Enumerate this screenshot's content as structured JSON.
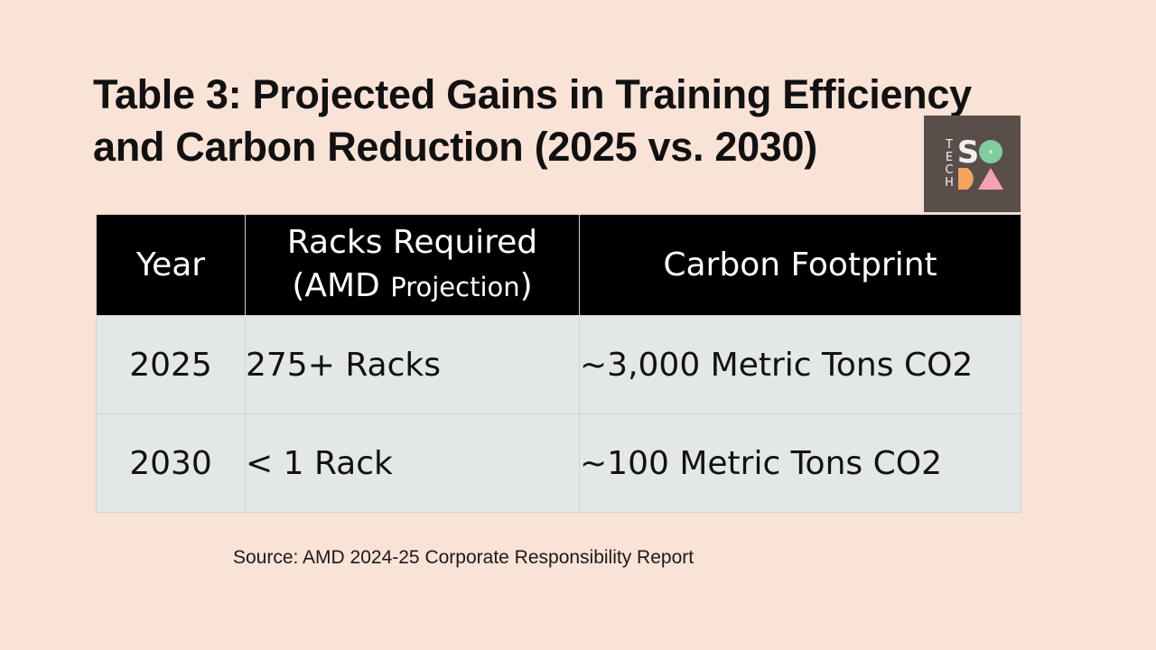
{
  "title": {
    "line1": "Table 3: Projected Gains in Training Efficiency",
    "line2": "and Carbon Reduction (2025 vs. 2030)"
  },
  "logo": {
    "letters_vertical": [
      "T",
      "E",
      "C",
      "H"
    ],
    "letters_main": [
      "S",
      "O",
      "D",
      "A"
    ],
    "colors": {
      "background": "#5a4e4a",
      "s": "#f2f0eb",
      "o": "#7fcf9e",
      "d": "#f4a45c",
      "a": "#f5a0b5",
      "tech": "#f2f0eb"
    }
  },
  "table": {
    "headers": {
      "year": "Year",
      "racks_line1": "Racks Required",
      "racks_line2_open": "(AMD ",
      "racks_line2_small": "Projection",
      "racks_line2_close": ")",
      "carbon": "Carbon Footprint"
    },
    "rows": [
      {
        "year": "2025",
        "racks": "275+ Racks",
        "carbon": "~3,000 Metric Tons CO2"
      },
      {
        "year": "2030",
        "racks": "< 1 Rack",
        "carbon": "~100 Metric Tons CO2"
      }
    ]
  },
  "source": "Source: AMD 2024-25 Corporate Responsibility Report",
  "colors": {
    "page_background": "#f9e2d6",
    "header_background": "#000000",
    "row_background": "#e3e7e8"
  }
}
